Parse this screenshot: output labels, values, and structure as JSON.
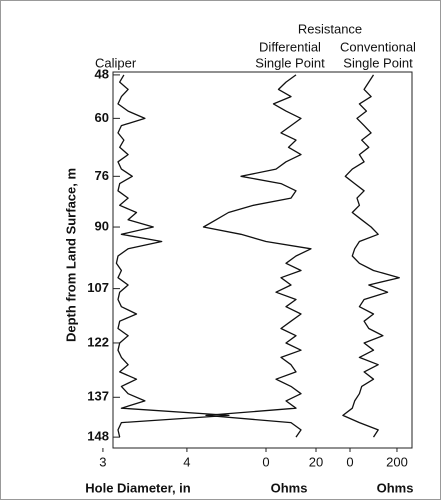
{
  "chart_data": {
    "type": "well-log",
    "group_title": "Resistance",
    "ylabel": "Depth from Land Surface, m",
    "ylim": [
      47.2,
      151
    ],
    "yticks": [
      48,
      60,
      76,
      90,
      107,
      122,
      137,
      148
    ],
    "inverted_y": true,
    "depth": [
      48,
      50,
      52,
      54,
      56,
      58,
      60,
      62,
      64,
      66,
      68,
      70,
      72,
      74,
      76,
      78,
      80,
      82,
      84,
      86,
      88,
      90,
      92,
      94,
      96,
      98,
      100,
      102,
      104,
      106,
      108,
      110,
      112,
      114,
      116,
      118,
      120,
      122,
      124,
      126,
      128,
      130,
      132,
      134,
      136,
      138,
      140,
      142,
      144,
      146,
      148
    ],
    "tracks": [
      {
        "name": [
          "Caliper"
        ],
        "xlabel": "Hole Diameter, in",
        "color": "#111111",
        "xlim": [
          3.12,
          6.68
        ],
        "xticks": [
          3,
          4
        ],
        "values": [
          3.25,
          3.2,
          3.3,
          3.22,
          3.18,
          3.3,
          3.5,
          3.22,
          3.18,
          3.25,
          3.2,
          3.3,
          3.18,
          3.22,
          3.35,
          3.2,
          3.18,
          3.3,
          3.2,
          3.4,
          3.3,
          3.6,
          3.22,
          3.7,
          3.3,
          3.18,
          3.16,
          3.22,
          3.18,
          3.3,
          3.2,
          3.18,
          3.22,
          3.4,
          3.2,
          3.18,
          3.3,
          3.2,
          3.18,
          3.22,
          3.3,
          3.2,
          3.4,
          3.22,
          3.3,
          3.5,
          3.22,
          4.5,
          3.22,
          3.18,
          3.2
        ]
      },
      {
        "name": [
          "Differential",
          "Single Point"
        ],
        "xlabel": "Ohms",
        "color": "#111111",
        "xlim": [
          -61.2,
          58.4
        ],
        "xticks": [
          0,
          20
        ],
        "values": [
          12,
          8,
          5,
          10,
          3,
          8,
          14,
          10,
          6,
          12,
          9,
          14,
          8,
          4,
          -10,
          6,
          12,
          10,
          -5,
          -15,
          -20,
          -25,
          -10,
          0,
          18,
          12,
          8,
          14,
          6,
          10,
          4,
          12,
          8,
          14,
          10,
          6,
          12,
          8,
          14,
          6,
          10,
          12,
          4,
          10,
          14,
          8,
          12,
          -24,
          10,
          14,
          12
        ]
      },
      {
        "name": [
          "Conventional",
          "Single Point"
        ],
        "xlabel": "Ohms",
        "color": "#111111",
        "xlim": [
          -1009,
          264
        ],
        "xticks": [
          0,
          200
        ],
        "values": [
          100,
          80,
          60,
          90,
          40,
          70,
          30,
          60,
          90,
          50,
          80,
          40,
          60,
          10,
          -20,
          20,
          60,
          30,
          40,
          10,
          50,
          90,
          120,
          40,
          20,
          10,
          40,
          100,
          210,
          80,
          160,
          60,
          40,
          100,
          60,
          80,
          140,
          60,
          100,
          40,
          120,
          60,
          100,
          50,
          40,
          20,
          10,
          -30,
          40,
          120,
          100
        ]
      }
    ]
  }
}
